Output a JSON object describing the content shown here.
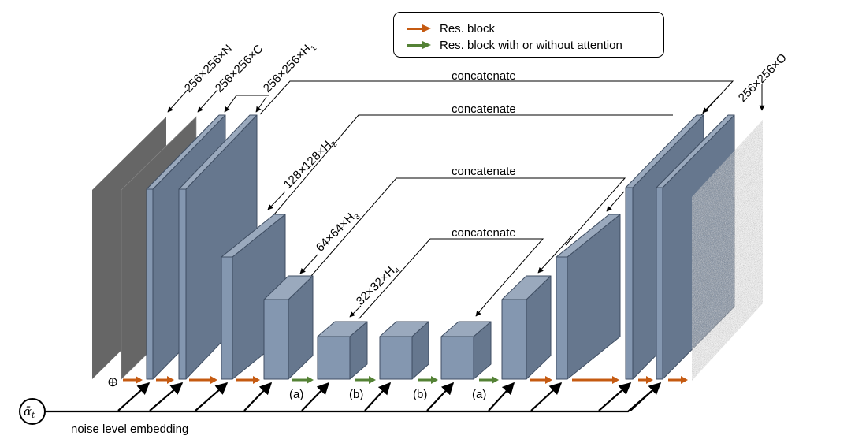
{
  "colors": {
    "res_block": "#c55a11",
    "res_block_attention": "#548235",
    "block_front": "#8497b0",
    "block_top": "#9aa9bd",
    "block_side": "#66778e",
    "block_stroke": "#3f4e63",
    "input_plane": "#666666"
  },
  "legend": {
    "items": [
      {
        "label": "Res. block",
        "arrow": "orange-arrow"
      },
      {
        "label": "Res. block with or without attention",
        "arrow": "green-arrow"
      }
    ]
  },
  "inputs": [
    {
      "label_main": "256×256×N",
      "label_sub": ""
    },
    {
      "label_main": "256×256×C",
      "label_sub": ""
    }
  ],
  "feature_labels": [
    {
      "label_main": "256×256×H",
      "label_sub": "1"
    },
    {
      "label_main": "128×128×H",
      "label_sub": "2"
    },
    {
      "label_main": "64×64×H",
      "label_sub": "3"
    },
    {
      "label_main": "32×32×H",
      "label_sub": "4"
    }
  ],
  "output": {
    "label_main": "256×256×O",
    "label_sub": ""
  },
  "skip_connections": [
    {
      "label": "concatenate"
    },
    {
      "label": "concatenate"
    },
    {
      "label": "concatenate"
    },
    {
      "label": "concatenate"
    }
  ],
  "block_annotations": [
    "(a)",
    "(b)",
    "(b)",
    "(a)"
  ],
  "add_symbol": "⊕",
  "noise": {
    "symbol": "ᾱ",
    "symbol_sub": "t",
    "label": "noise level embedding"
  }
}
